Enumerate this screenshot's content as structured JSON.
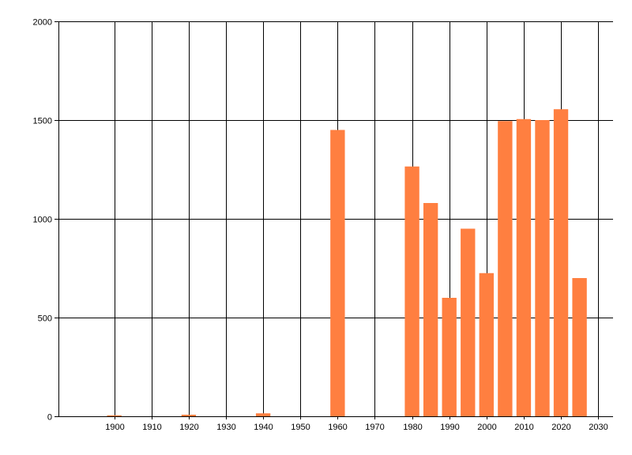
{
  "chart_data": {
    "type": "bar",
    "title": "",
    "xlabel": "",
    "ylabel": "",
    "x": [
      1900,
      1920,
      1940,
      1960,
      1980,
      1985,
      1990,
      1995,
      2000,
      2005,
      2010,
      2015,
      2020,
      2025
    ],
    "values": [
      5,
      8,
      15,
      1450,
      1265,
      1080,
      600,
      950,
      725,
      1495,
      1505,
      1500,
      1555,
      700
    ],
    "xlim": [
      1885,
      2034
    ],
    "ylim": [
      0,
      2000
    ],
    "x_ticks": [
      "1900",
      "1910",
      "1920",
      "1930",
      "1940",
      "1950",
      "1960",
      "1970",
      "1980",
      "1990",
      "2000",
      "2010",
      "2020",
      "2030"
    ],
    "y_ticks": [
      "0",
      "500",
      "1000",
      "1500",
      "2000"
    ],
    "bar_color": "#ff7f40",
    "grid": true
  }
}
